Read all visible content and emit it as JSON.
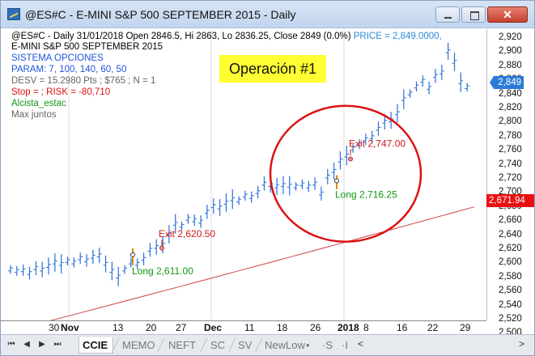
{
  "window": {
    "title": "@ES#C - E-MINI S&P 500 SEPTEMBER 2015 - Daily",
    "minimize_icon": "minimize-icon",
    "maximize_icon": "maximize-icon",
    "close_icon": "close-icon",
    "close_glyph": "✕"
  },
  "info": {
    "line1_prefix": "@ES#C - Daily 31/01/2018 Open 2846.5, Hi 2863, Lo 2836.25, Close 2849 (0.0%)",
    "line1_price": "PRICE = 2,849.0000,",
    "line2": "E-MINI S&P 500 SEPTEMBER 2015",
    "line3": "SISTEMA OPCIONES",
    "line4": "PARAM: 7, 100, 140, 60, 50",
    "line5": "DESV = 15.2980 Pts ; $765 ; N = 1",
    "line6": "Stop = ; RISK = -80,710",
    "line7": "Alcista_estac",
    "line8": "Max juntos"
  },
  "annotation": "Operación #1",
  "trades": {
    "exit1": "Exit 2,620.50",
    "long1": "Long 2,611.00",
    "exit2": "Exit 2,747.00",
    "long2": "Long 2,716.25"
  },
  "price_axis": {
    "ticks": [
      "2,920",
      "2,900",
      "2,880",
      "2,860",
      "2,840",
      "2,820",
      "2,800",
      "2,780",
      "2,760",
      "2,740",
      "2,720",
      "2,700",
      "2,680",
      "2,660",
      "2,640",
      "2,620",
      "2,600",
      "2,580",
      "2,560",
      "2,540",
      "2,520",
      "2,500"
    ],
    "last_price": "2,849",
    "ma_value": "2,671.94"
  },
  "time_axis": {
    "labels": [
      {
        "text": "30",
        "bold": false
      },
      {
        "text": "Nov",
        "bold": true
      },
      {
        "text": "13",
        "bold": false
      },
      {
        "text": "20",
        "bold": false
      },
      {
        "text": "27",
        "bold": false
      },
      {
        "text": "Dec",
        "bold": true
      },
      {
        "text": "11",
        "bold": false
      },
      {
        "text": "18",
        "bold": false
      },
      {
        "text": "26",
        "bold": false
      },
      {
        "text": "2018",
        "bold": true
      },
      {
        "text": "8",
        "bold": false
      },
      {
        "text": "16",
        "bold": false
      },
      {
        "text": "22",
        "bold": false
      },
      {
        "text": "29",
        "bold": false
      }
    ]
  },
  "tabs": {
    "nav": [
      "⏮",
      "◀",
      "▶",
      "⏭"
    ],
    "items": [
      "CCIE",
      "MEMO",
      "NEFT",
      "SC",
      "SV",
      "NewLow",
      "•",
      "·S",
      "·I"
    ],
    "active": "CCIE",
    "scroll_left": "<",
    "scroll_right": ">"
  },
  "colors": {
    "price_bar": "#2a6fd6",
    "moving_average": "#d04040",
    "highlight_circle": "#dd1111",
    "annotation_bg": "#ffff33",
    "entry_marker": "#e08a00"
  }
}
